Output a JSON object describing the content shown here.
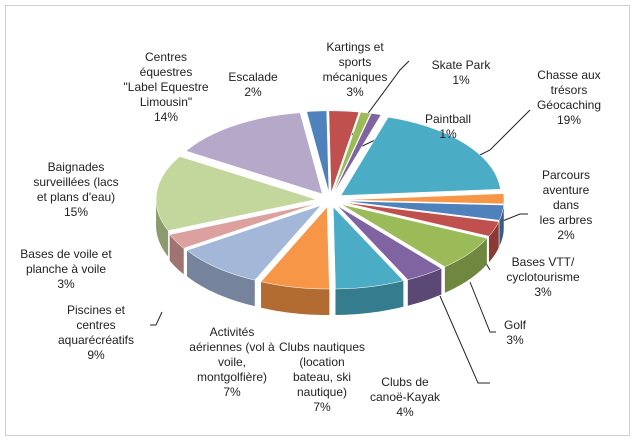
{
  "chart_data": {
    "type": "pie3d",
    "categories": [
      "Escalade",
      "Kartings et\nsports\nmécaniques",
      "Skate Park",
      "Paintball",
      "Chasse aux\ntrésors\nGéocaching",
      "Parcours\naventure dans\nles arbres",
      "Bases VTT/\ncyclotourisme",
      "Golf",
      null,
      "Clubs de\ncanoë-Kayak",
      "Clubs nautiques\n(location\nbateau, ski\nnautique)",
      "Activités\naériennes (vol à\nvoile,\nmontgolfière)",
      "Piscines et\ncentres\naquarécréatifs",
      "Bases de voile et\nplanche à voile",
      "Baignades\nsurveillées (lacs\net plans d'eau)",
      "Centres\néquestres\n\"Label Equestre\nLimousin\""
    ],
    "values": [
      2,
      3,
      1,
      1,
      19,
      2,
      3,
      3,
      7,
      4,
      7,
      7,
      9,
      3,
      15,
      14
    ],
    "value_labels": [
      "2%",
      "3%",
      "1%",
      "1%",
      "19%",
      "2%",
      "3%",
      "3%",
      null,
      "4%",
      "7%",
      "7%",
      "9%",
      "3%",
      "15%",
      "14%"
    ],
    "colors": [
      "#4f81bd",
      "#c0504d",
      "#9bbb59",
      "#8064a2",
      "#4bacc6",
      "#f79646",
      "#4f81bd",
      "#c0504d",
      "#9bbb59",
      "#8064a2",
      "#4bacc6",
      "#f79646",
      "#a3b7d9",
      "#dca09e",
      "#c3d69b",
      "#b6a8c9"
    ]
  }
}
